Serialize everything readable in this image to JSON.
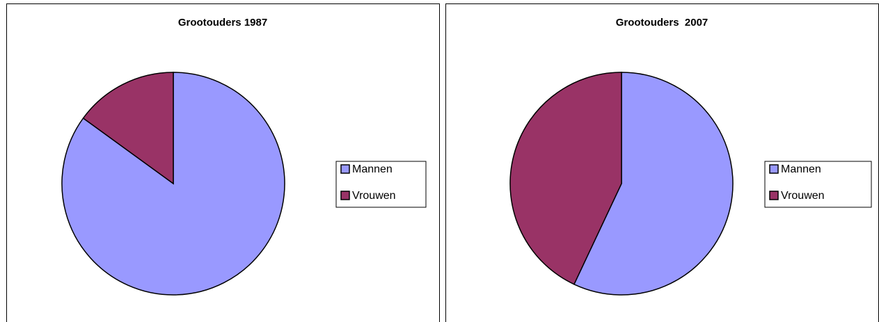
{
  "chart_data": [
    {
      "type": "pie",
      "title": "Grootouders 1987",
      "categories": [
        "Mannen",
        "Vrouwen"
      ],
      "values": [
        85,
        15
      ],
      "colors": [
        "#9999ff",
        "#993366"
      ]
    },
    {
      "type": "pie",
      "title": "Grootouders  2007",
      "categories": [
        "Mannen",
        "Vrouwen"
      ],
      "values": [
        57,
        43
      ],
      "colors": [
        "#9999ff",
        "#993366"
      ]
    }
  ]
}
